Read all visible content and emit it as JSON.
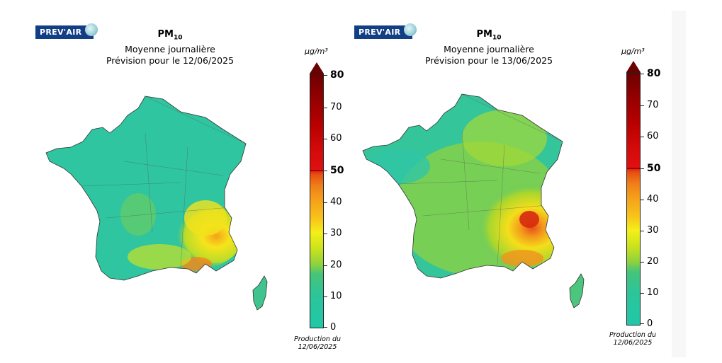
{
  "logo_text": "PREV'AIR",
  "panels": [
    {
      "title_pm": "PM",
      "title_sub": "10",
      "title_line2": "Moyenne journalière",
      "title_line3": "Prévision pour le 12/06/2025",
      "production_label": "Production du",
      "production_date": "12/06/2025"
    },
    {
      "title_pm": "PM",
      "title_sub": "10",
      "title_line2": "Moyenne journalière",
      "title_line3": "Prévision pour le 13/06/2025",
      "production_label": "Production du",
      "production_date": "12/06/2025"
    }
  ],
  "colorbar": {
    "unit": "µg/m³",
    "ticks": [
      "0",
      "10",
      "20",
      "30",
      "40",
      "50",
      "60",
      "70",
      "80"
    ],
    "threshold": "50",
    "min": 0,
    "max": 80,
    "colors": {
      "low": "#20c8a8",
      "mid": "#f4ef1a",
      "high": "#e01010",
      "max": "#6e0000"
    }
  }
}
